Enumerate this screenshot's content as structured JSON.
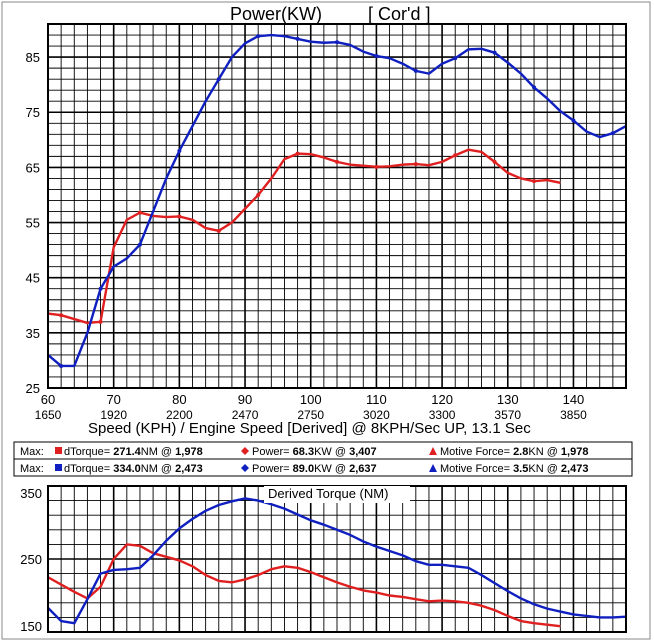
{
  "chart_data": [
    {
      "type": "line",
      "title": "Power(KW)",
      "title_tag": "[ Cor'd ]",
      "xlabel": "Speed (KPH) / Engine Speed [Derived] @ 8KPH/Sec UP, 13.1 Sec",
      "xlim": [
        60,
        148
      ],
      "ylim": [
        25,
        91
      ],
      "x_ticks": [
        "60",
        "70",
        "80",
        "90",
        "100",
        "110",
        "120",
        "130",
        "140"
      ],
      "x_ticks_values": [
        60,
        70,
        80,
        90,
        100,
        110,
        120,
        130,
        140
      ],
      "rpm_ticks": [
        "1650",
        "1920",
        "2200",
        "2470",
        "2750",
        "3020",
        "3300",
        "3570",
        "3850"
      ],
      "y_ticks": [
        "25",
        "35",
        "45",
        "55",
        "65",
        "75",
        "85"
      ],
      "y_ticks_values": [
        25,
        35,
        45,
        55,
        65,
        75,
        85
      ],
      "grid": true,
      "series": [
        {
          "color": "#e02020",
          "x": [
            60,
            62,
            64,
            66,
            68,
            70,
            72,
            74,
            76,
            78,
            80,
            82,
            84,
            86,
            88,
            90,
            92,
            94,
            96,
            98,
            100,
            102,
            104,
            106,
            108,
            110,
            112,
            114,
            116,
            118,
            120,
            122,
            124,
            126,
            128,
            130,
            132,
            134,
            136,
            138
          ],
          "y": [
            38.5,
            38.2,
            37.5,
            36.8,
            37,
            50.5,
            55.5,
            56.8,
            56.2,
            56,
            56.1,
            55.5,
            54,
            53.5,
            55,
            57.5,
            60,
            63,
            66.5,
            67.5,
            67.4,
            66.8,
            66,
            65.5,
            65.3,
            65.1,
            65.2,
            65.5,
            65.6,
            65.4,
            66,
            67.2,
            68.2,
            67.8,
            66,
            64,
            63,
            62.5,
            62.7,
            62.2
          ]
        },
        {
          "color": "#1020c0",
          "x": [
            60,
            62,
            64,
            66,
            68,
            70,
            72,
            74,
            76,
            78,
            80,
            82,
            84,
            86,
            88,
            90,
            92,
            94,
            96,
            98,
            100,
            102,
            104,
            106,
            108,
            110,
            112,
            114,
            116,
            118,
            120,
            122,
            124,
            126,
            128,
            130,
            132,
            134,
            136,
            138,
            140,
            142,
            144,
            146,
            148
          ],
          "y": [
            31,
            29,
            29,
            35,
            43,
            47,
            48.5,
            51,
            57,
            63,
            68,
            72.5,
            77,
            81,
            85,
            87.5,
            88.8,
            89,
            88.8,
            88.3,
            87.8,
            87.6,
            87.7,
            87.2,
            86,
            85.2,
            84.8,
            83.8,
            82.5,
            82,
            83.8,
            84.8,
            86.4,
            86.5,
            85.8,
            84,
            82,
            79.5,
            77.5,
            75.2,
            73.5,
            71.5,
            70.5,
            71.2,
            72.5
          ]
        }
      ]
    },
    {
      "type": "line",
      "title": "Derived Torque (NM)",
      "xlim": [
        60,
        148
      ],
      "ylim": [
        150,
        350
      ],
      "y_ticks": [
        "150",
        "250",
        "350"
      ],
      "y_ticks_values": [
        150,
        250,
        350
      ],
      "grid": true,
      "series": [
        {
          "color": "#e02020",
          "x": [
            60,
            62,
            64,
            66,
            68,
            70,
            72,
            74,
            76,
            78,
            80,
            82,
            84,
            86,
            88,
            90,
            92,
            94,
            96,
            98,
            100,
            102,
            104,
            106,
            108,
            110,
            112,
            114,
            116,
            118,
            120,
            122,
            124,
            126,
            128,
            130,
            132,
            134,
            136,
            138
          ],
          "y": [
            225,
            215,
            205,
            196,
            212,
            250,
            270,
            268,
            258,
            253,
            248,
            240,
            228,
            220,
            218,
            222,
            228,
            236,
            240,
            238,
            232,
            225,
            218,
            212,
            207,
            204,
            200,
            198,
            195,
            192,
            193,
            192,
            190,
            186,
            180,
            172,
            165,
            162,
            160,
            158
          ]
        },
        {
          "color": "#1020c0",
          "x": [
            60,
            62,
            64,
            66,
            68,
            70,
            72,
            74,
            76,
            78,
            80,
            82,
            84,
            86,
            88,
            90,
            92,
            94,
            96,
            98,
            100,
            102,
            104,
            106,
            108,
            110,
            112,
            114,
            116,
            118,
            120,
            122,
            124,
            126,
            128,
            130,
            132,
            134,
            136,
            138,
            140,
            142,
            144,
            146,
            148
          ],
          "y": [
            183,
            165,
            162,
            195,
            230,
            235,
            236,
            238,
            255,
            275,
            292,
            305,
            316,
            324,
            329,
            333,
            330,
            325,
            319,
            311,
            303,
            297,
            290,
            283,
            274,
            267,
            261,
            255,
            247,
            242,
            242,
            240,
            238,
            228,
            217,
            206,
            196,
            188,
            182,
            178,
            174,
            172,
            170,
            170,
            171
          ]
        }
      ]
    }
  ],
  "legend": {
    "rows": [
      {
        "max_label": "Max:",
        "color": "#e02020",
        "torque_label": "dTorque= ",
        "torque_value": "271.4",
        "torque_unit": "NM @ ",
        "torque_rpm": "1,978",
        "power_label": "Power= ",
        "power_value": "68.3",
        "power_unit": "KW @ ",
        "power_rpm": "3,407",
        "force_label": "Motive Force= ",
        "force_value": "2.8",
        "force_unit": "KN @ ",
        "force_rpm": "1,978"
      },
      {
        "max_label": "Max:",
        "color": "#1020c0",
        "torque_label": "dTorque= ",
        "torque_value": "334.0",
        "torque_unit": "NM @ ",
        "torque_rpm": "2,473",
        "power_label": "Power= ",
        "power_value": "89.0",
        "power_unit": "KW @ ",
        "power_rpm": "2,637",
        "force_label": "Motive Force= ",
        "force_value": "3.5",
        "force_unit": "KN @ ",
        "force_rpm": "2,473"
      }
    ]
  }
}
